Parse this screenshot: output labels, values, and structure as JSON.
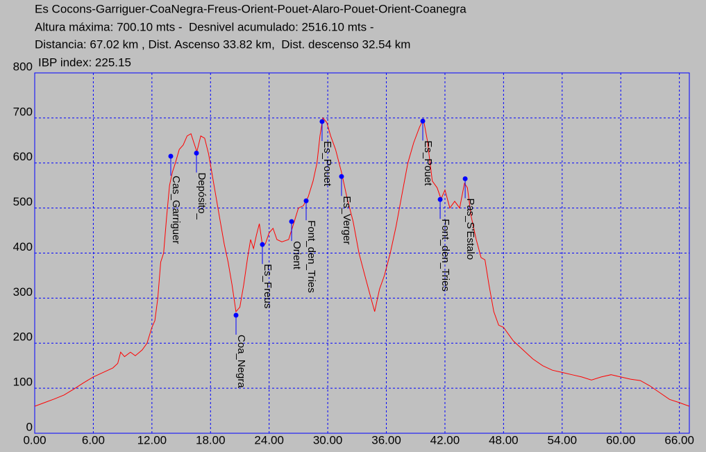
{
  "chart_data": {
    "type": "line",
    "title": "Es Cocons-Garriguer-CoaNegra-Freus-Orient-Pouet-Alaro-Pouet-Orient-Coanegra",
    "subtitle": [
      "Altura máxima: 700.10 mts -  Desnivel acumulado: 2516.10 mts -",
      "Distancia: 67.02 km , Dist. Ascenso 33.82 km,  Dist. descenso 32.54 km",
      "IBP index: 225.15"
    ],
    "x": [
      0,
      1,
      2,
      3,
      4,
      5,
      6,
      7,
      8,
      8.5,
      8.8,
      9.2,
      9.8,
      10.3,
      11,
      11.5,
      12,
      12.3,
      12.6,
      12.9,
      13.2,
      13.5,
      13.8,
      14.1,
      14.4,
      14.8,
      15.2,
      15.6,
      16,
      16.3,
      16.6,
      17,
      17.4,
      17.8,
      18.2,
      18.6,
      19,
      19.4,
      19.8,
      20.2,
      20.6,
      21,
      21.4,
      21.8,
      22.1,
      22.4,
      22.7,
      23,
      23.3,
      23.6,
      24,
      24.4,
      24.8,
      25.3,
      26,
      26.5,
      27,
      27.5,
      28,
      28.5,
      28.9,
      29.2,
      29.5,
      29.9,
      30.3,
      30.8,
      31.4,
      32,
      32.6,
      33.2,
      33.8,
      34.3,
      34.8,
      35.3,
      35.8,
      36.4,
      37,
      37.6,
      38.2,
      38.8,
      39.4,
      39.8,
      40.2,
      40.7,
      41.2,
      41.6,
      42,
      42.5,
      43,
      43.5,
      44,
      44.3,
      44.7,
      45.2,
      45.7,
      46.1,
      46.5,
      47,
      47.5,
      48,
      48.5,
      49,
      50,
      51,
      52,
      53,
      54,
      55,
      56,
      57,
      58,
      59,
      60,
      61,
      62,
      63,
      64,
      65,
      66,
      67.02
    ],
    "values": [
      60,
      68,
      76,
      85,
      98,
      112,
      125,
      135,
      145,
      155,
      180,
      170,
      180,
      172,
      185,
      200,
      235,
      250,
      300,
      380,
      400,
      480,
      550,
      580,
      600,
      630,
      640,
      660,
      665,
      645,
      625,
      660,
      655,
      620,
      570,
      520,
      470,
      420,
      380,
      330,
      270,
      280,
      330,
      390,
      430,
      410,
      440,
      465,
      420,
      420,
      445,
      455,
      430,
      425,
      430,
      465,
      500,
      505,
      525,
      560,
      600,
      660,
      700,
      690,
      660,
      630,
      580,
      520,
      470,
      400,
      350,
      310,
      270,
      320,
      350,
      400,
      460,
      530,
      600,
      645,
      680,
      697,
      650,
      560,
      545,
      520,
      540,
      500,
      515,
      500,
      555,
      545,
      480,
      430,
      390,
      385,
      330,
      270,
      240,
      235,
      220,
      205,
      185,
      165,
      150,
      140,
      135,
      130,
      125,
      118,
      125,
      130,
      125,
      120,
      117,
      105,
      90,
      75,
      68,
      60
    ],
    "color": "#ff0000",
    "waypoints": [
      {
        "label": "Cas_Garriguer",
        "x": 13.93,
        "y": 615
      },
      {
        "label": "Depósito_",
        "x": 16.56,
        "y": 622
      },
      {
        "label": "Coa_Negra",
        "x": 20.61,
        "y": 262
      },
      {
        "label": "Es_Freus",
        "x": 23.31,
        "y": 419
      },
      {
        "label": "Orient",
        "x": 26.3,
        "y": 470
      },
      {
        "label": "Font_den_Tries",
        "x": 27.79,
        "y": 516
      },
      {
        "label": "Es_Pouet",
        "x": 29.42,
        "y": 692
      },
      {
        "label": "Es_Verger",
        "x": 31.41,
        "y": 570
      },
      {
        "label": "Es_Pouet",
        "x": 39.73,
        "y": 693
      },
      {
        "label": "Font_den_Tries",
        "x": 41.51,
        "y": 519
      },
      {
        "label": "Pas_S'Estalo",
        "x": 44.07,
        "y": 565
      }
    ],
    "waypoint_color": "#0000ff",
    "xlim": [
      0,
      67.02
    ],
    "ylim": [
      0,
      800
    ],
    "xticks": [
      {
        "value": 0,
        "label": "0.00"
      },
      {
        "value": 6,
        "label": "6.00"
      },
      {
        "value": 12,
        "label": "12.00"
      },
      {
        "value": 18,
        "label": "18.00"
      },
      {
        "value": 24,
        "label": "24.00"
      },
      {
        "value": 30,
        "label": "30.00"
      },
      {
        "value": 36,
        "label": "36.00"
      },
      {
        "value": 42,
        "label": "42.00"
      },
      {
        "value": 48,
        "label": "48.00"
      },
      {
        "value": 54,
        "label": "54.00"
      },
      {
        "value": 60,
        "label": "60.00"
      },
      {
        "value": 66,
        "label": "66.00"
      }
    ],
    "yticks": [
      0,
      100,
      200,
      300,
      400,
      500,
      600,
      700,
      800
    ],
    "grid": true
  }
}
